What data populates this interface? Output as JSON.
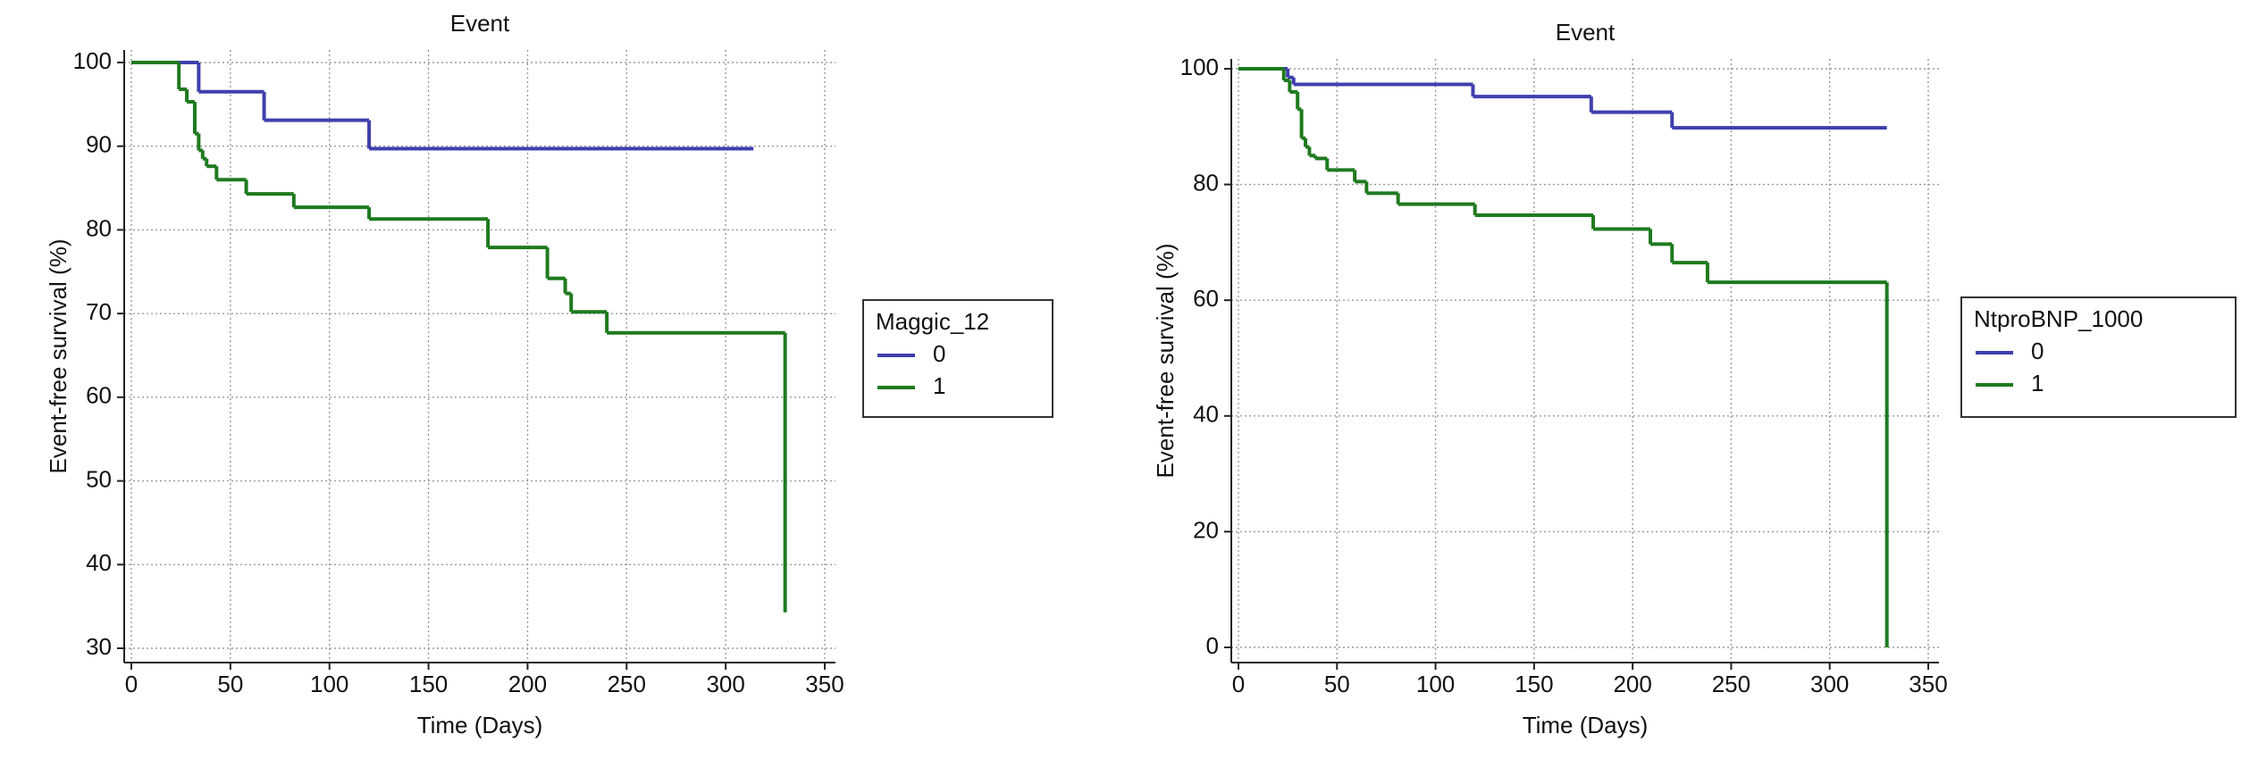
{
  "chart_data": [
    {
      "type": "step",
      "title": "Event",
      "x_label": "Time (Days)",
      "y_label": "Event-free survival (%)",
      "legend_title": "Maggic_12",
      "grid": true,
      "xlim": [
        0,
        350
      ],
      "xticks": [
        0,
        50,
        100,
        150,
        200,
        250,
        300,
        350
      ],
      "ylim": [
        30,
        100
      ],
      "yticks": [
        30,
        40,
        50,
        60,
        70,
        80,
        90,
        100
      ],
      "series": [
        {
          "name": "0",
          "color": "#3f3fae",
          "x": [
            0,
            34,
            67,
            120,
            314
          ],
          "values": [
            100,
            96.5,
            93.1,
            89.7,
            89.7
          ]
        },
        {
          "name": "1",
          "color": "#1e7a1e",
          "x": [
            0,
            24,
            28,
            32,
            34,
            36,
            38,
            43,
            58,
            82,
            120,
            180,
            210,
            219,
            222,
            240,
            330
          ],
          "values": [
            100,
            96.8,
            95.3,
            91.5,
            89.5,
            88.5,
            87.6,
            86,
            84.3,
            82.7,
            81.3,
            77.9,
            74.2,
            72.4,
            70.2,
            67.7,
            34.3
          ]
        }
      ]
    },
    {
      "type": "step",
      "title": "Event",
      "x_label": "Time (Days)",
      "y_label": "Event-free survival (%)",
      "legend_title": "NtproBNP_1000",
      "grid": true,
      "xlim": [
        0,
        350
      ],
      "xticks": [
        0,
        50,
        100,
        150,
        200,
        250,
        300,
        350
      ],
      "ylim": [
        0,
        100
      ],
      "yticks": [
        0,
        20,
        40,
        60,
        80,
        100
      ],
      "series": [
        {
          "name": "0",
          "color": "#3f3fae",
          "x": [
            0,
            25,
            28,
            119,
            179,
            220,
            329
          ],
          "values": [
            100,
            98.5,
            97.3,
            95.2,
            92.5,
            89.8,
            89.8
          ]
        },
        {
          "name": "1",
          "color": "#1e7a1e",
          "x": [
            0,
            23,
            26,
            30,
            32,
            34,
            36,
            39,
            45,
            59,
            65,
            81,
            120,
            180,
            209,
            220,
            238,
            329
          ],
          "values": [
            100,
            98,
            96,
            93,
            88,
            86.5,
            85,
            84.5,
            82.5,
            80.5,
            78.5,
            76.6,
            74.7,
            72.3,
            69.7,
            66.5,
            63.1,
            0
          ]
        }
      ]
    }
  ]
}
